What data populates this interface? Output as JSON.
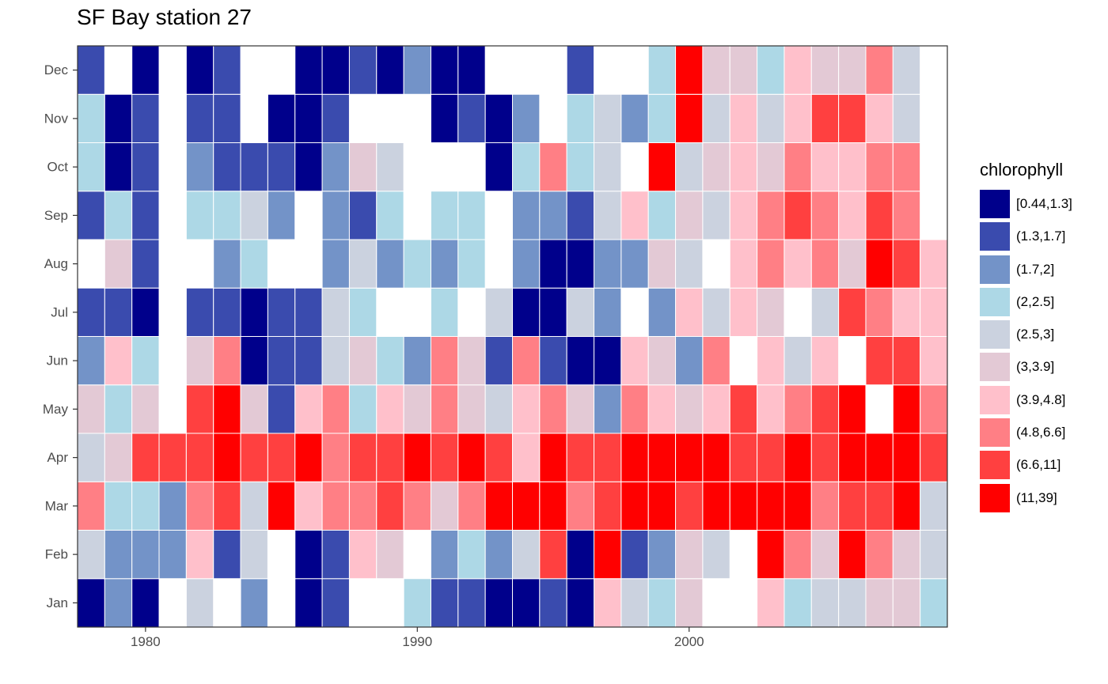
{
  "chart_data": {
    "type": "heatmap",
    "title": "SF Bay station 27",
    "xlabel": "",
    "ylabel": "",
    "x": [
      1978,
      1979,
      1980,
      1981,
      1982,
      1983,
      1984,
      1985,
      1986,
      1987,
      1988,
      1989,
      1990,
      1991,
      1992,
      1993,
      1994,
      1995,
      1996,
      1997,
      1998,
      1999,
      2000,
      2001,
      2002,
      2003,
      2004,
      2005,
      2006,
      2007,
      2008,
      2009
    ],
    "x_ticks": [
      1980,
      1990,
      2000
    ],
    "xlim": [
      1977.5,
      2009.5
    ],
    "y_categories": [
      "Jan",
      "Feb",
      "Mar",
      "Apr",
      "May",
      "Jun",
      "Jul",
      "Aug",
      "Sep",
      "Oct",
      "Nov",
      "Dec"
    ],
    "grid": false,
    "legend": {
      "title": "chlorophyll",
      "placement": "right",
      "entries": [
        {
          "label": "[0.44,1.3]",
          "color": "#00008B"
        },
        {
          "label": "(1.3,1.7]",
          "color": "#3A4BAE"
        },
        {
          "label": "(1.7,2]",
          "color": "#7393C8"
        },
        {
          "label": "(2,2.5]",
          "color": "#ADD8E6"
        },
        {
          "label": "(2.5,3]",
          "color": "#CBD2DF"
        },
        {
          "label": "(3,3.9]",
          "color": "#E3C9D5"
        },
        {
          "label": "(3.9,4.8]",
          "color": "#FFC0CB"
        },
        {
          "label": "(4.8,6.6]",
          "color": "#FF7F85"
        },
        {
          "label": "(6.6,11]",
          "color": "#FF4040"
        },
        {
          "label": "(11,39]",
          "color": "#FF0000"
        }
      ]
    },
    "values": {
      "Jan": [
        0,
        2,
        0,
        null,
        4,
        null,
        2,
        null,
        0,
        1,
        null,
        null,
        3,
        1,
        1,
        0,
        0,
        1,
        0,
        6,
        4,
        3,
        5,
        null,
        null,
        6,
        3,
        4,
        4,
        5,
        5,
        3
      ],
      "Feb": [
        4,
        2,
        2,
        2,
        6,
        1,
        4,
        null,
        0,
        1,
        6,
        5,
        null,
        2,
        3,
        2,
        4,
        8,
        0,
        9,
        1,
        2,
        5,
        4,
        null,
        9,
        7,
        5,
        9,
        7,
        5,
        4
      ],
      "Mar": [
        7,
        3,
        3,
        2,
        7,
        8,
        4,
        9,
        6,
        7,
        7,
        8,
        7,
        5,
        7,
        9,
        9,
        9,
        7,
        8,
        9,
        9,
        8,
        9,
        9,
        9,
        9,
        7,
        8,
        8,
        9,
        4
      ],
      "Apr": [
        4,
        5,
        8,
        8,
        8,
        9,
        8,
        8,
        9,
        7,
        8,
        8,
        9,
        8,
        9,
        8,
        6,
        9,
        8,
        8,
        9,
        9,
        9,
        9,
        8,
        8,
        9,
        8,
        9,
        9,
        9,
        8
      ],
      "May": [
        5,
        3,
        5,
        null,
        8,
        9,
        5,
        1,
        6,
        7,
        3,
        6,
        5,
        7,
        5,
        4,
        6,
        7,
        5,
        2,
        7,
        6,
        5,
        6,
        8,
        6,
        7,
        8,
        9,
        null,
        9,
        7
      ],
      "Jun": [
        2,
        6,
        3,
        null,
        5,
        7,
        0,
        1,
        1,
        4,
        5,
        3,
        2,
        7,
        5,
        1,
        7,
        1,
        0,
        0,
        6,
        5,
        2,
        7,
        null,
        6,
        4,
        6,
        null,
        8,
        8,
        6
      ],
      "Jul": [
        1,
        1,
        0,
        null,
        1,
        1,
        0,
        1,
        1,
        4,
        3,
        null,
        null,
        3,
        null,
        4,
        0,
        0,
        4,
        2,
        null,
        2,
        6,
        4,
        6,
        5,
        null,
        4,
        8,
        7,
        6,
        6
      ],
      "Aug": [
        null,
        5,
        1,
        null,
        null,
        2,
        3,
        null,
        null,
        2,
        4,
        2,
        3,
        2,
        3,
        null,
        2,
        0,
        0,
        2,
        2,
        5,
        4,
        null,
        6,
        7,
        6,
        7,
        5,
        9,
        8,
        6
      ],
      "Sep": [
        1,
        3,
        1,
        null,
        3,
        3,
        4,
        2,
        null,
        2,
        1,
        3,
        null,
        3,
        3,
        null,
        2,
        2,
        1,
        4,
        6,
        3,
        5,
        4,
        6,
        7,
        8,
        7,
        6,
        8,
        7,
        null
      ],
      "Oct": [
        3,
        0,
        1,
        null,
        2,
        1,
        1,
        1,
        0,
        2,
        5,
        4,
        null,
        null,
        null,
        0,
        3,
        7,
        3,
        4,
        null,
        9,
        4,
        5,
        6,
        5,
        7,
        6,
        6,
        7,
        7,
        null
      ],
      "Nov": [
        3,
        0,
        1,
        null,
        1,
        1,
        null,
        0,
        0,
        1,
        null,
        null,
        null,
        0,
        1,
        0,
        2,
        null,
        3,
        4,
        2,
        3,
        9,
        4,
        6,
        4,
        6,
        8,
        8,
        6,
        4,
        null
      ],
      "Dec": [
        1,
        null,
        0,
        null,
        0,
        1,
        null,
        null,
        0,
        0,
        1,
        0,
        2,
        0,
        0,
        null,
        null,
        null,
        1,
        null,
        null,
        3,
        9,
        5,
        5,
        3,
        6,
        5,
        5,
        7,
        4,
        null
      ]
    }
  }
}
